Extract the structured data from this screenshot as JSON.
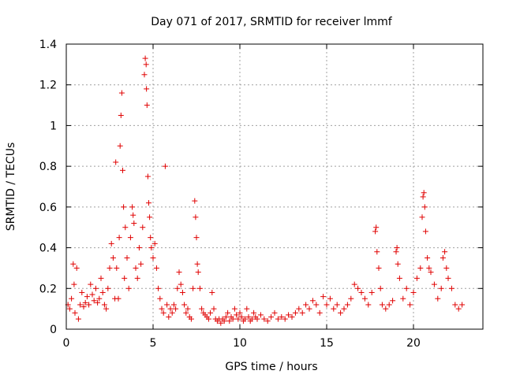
{
  "chart_data": {
    "type": "scatter",
    "title": "Day 071 of 2017, SRMTID for receiver lmmf",
    "xlabel": "GPS time / hours",
    "ylabel": "SRMTID / TECUs",
    "xlim": [
      0,
      24
    ],
    "ylim": [
      0,
      1.4
    ],
    "xticks": [
      0,
      5,
      10,
      15,
      20
    ],
    "xtick_labels": [
      "0",
      "5",
      "10",
      "15",
      "20"
    ],
    "yticks": [
      0,
      0.2,
      0.4,
      0.6,
      0.8,
      1.0,
      1.2,
      1.4
    ],
    "ytick_labels": [
      "0",
      "0.2",
      "0.4",
      "0.6",
      "0.8",
      "1",
      "1.2",
      "1.4"
    ],
    "grid": true,
    "marker": "+",
    "color": "#e00000",
    "series": [
      {
        "name": "SRMTID",
        "points": [
          [
            0.1,
            0.12
          ],
          [
            0.2,
            0.1
          ],
          [
            0.3,
            0.15
          ],
          [
            0.4,
            0.32
          ],
          [
            0.45,
            0.22
          ],
          [
            0.5,
            0.08
          ],
          [
            0.6,
            0.3
          ],
          [
            0.7,
            0.05
          ],
          [
            0.8,
            0.12
          ],
          [
            0.9,
            0.18
          ],
          [
            1.0,
            0.11
          ],
          [
            1.1,
            0.13
          ],
          [
            1.2,
            0.16
          ],
          [
            1.3,
            0.12
          ],
          [
            1.4,
            0.22
          ],
          [
            1.5,
            0.17
          ],
          [
            1.6,
            0.14
          ],
          [
            1.7,
            0.2
          ],
          [
            1.8,
            0.13
          ],
          [
            1.9,
            0.15
          ],
          [
            2.0,
            0.25
          ],
          [
            2.1,
            0.18
          ],
          [
            2.2,
            0.12
          ],
          [
            2.3,
            0.1
          ],
          [
            2.4,
            0.2
          ],
          [
            2.5,
            0.3
          ],
          [
            2.6,
            0.42
          ],
          [
            2.7,
            0.35
          ],
          [
            2.8,
            0.15
          ],
          [
            2.85,
            0.82
          ],
          [
            2.9,
            0.3
          ],
          [
            3.0,
            0.15
          ],
          [
            3.05,
            0.45
          ],
          [
            3.1,
            0.9
          ],
          [
            3.15,
            1.05
          ],
          [
            3.2,
            1.16
          ],
          [
            3.25,
            0.78
          ],
          [
            3.3,
            0.6
          ],
          [
            3.35,
            0.25
          ],
          [
            3.4,
            0.5
          ],
          [
            3.5,
            0.35
          ],
          [
            3.6,
            0.2
          ],
          [
            3.7,
            0.45
          ],
          [
            3.8,
            0.6
          ],
          [
            3.85,
            0.56
          ],
          [
            3.9,
            0.52
          ],
          [
            4.0,
            0.3
          ],
          [
            4.1,
            0.25
          ],
          [
            4.2,
            0.4
          ],
          [
            4.3,
            0.32
          ],
          [
            4.4,
            0.5
          ],
          [
            4.5,
            1.25
          ],
          [
            4.55,
            1.33
          ],
          [
            4.6,
            1.3
          ],
          [
            4.62,
            1.18
          ],
          [
            4.65,
            1.1
          ],
          [
            4.7,
            0.75
          ],
          [
            4.75,
            0.62
          ],
          [
            4.8,
            0.55
          ],
          [
            4.85,
            0.45
          ],
          [
            4.9,
            0.4
          ],
          [
            5.0,
            0.35
          ],
          [
            5.1,
            0.42
          ],
          [
            5.2,
            0.3
          ],
          [
            5.3,
            0.2
          ],
          [
            5.4,
            0.15
          ],
          [
            5.5,
            0.1
          ],
          [
            5.6,
            0.08
          ],
          [
            5.7,
            0.8
          ],
          [
            5.8,
            0.12
          ],
          [
            5.9,
            0.06
          ],
          [
            6.0,
            0.1
          ],
          [
            6.1,
            0.08
          ],
          [
            6.2,
            0.12
          ],
          [
            6.3,
            0.1
          ],
          [
            6.4,
            0.2
          ],
          [
            6.5,
            0.28
          ],
          [
            6.6,
            0.22
          ],
          [
            6.7,
            0.18
          ],
          [
            6.8,
            0.12
          ],
          [
            6.9,
            0.08
          ],
          [
            7.0,
            0.1
          ],
          [
            7.1,
            0.06
          ],
          [
            7.2,
            0.05
          ],
          [
            7.3,
            0.2
          ],
          [
            7.4,
            0.63
          ],
          [
            7.45,
            0.55
          ],
          [
            7.5,
            0.45
          ],
          [
            7.55,
            0.32
          ],
          [
            7.6,
            0.28
          ],
          [
            7.7,
            0.2
          ],
          [
            7.8,
            0.1
          ],
          [
            7.9,
            0.08
          ],
          [
            8.0,
            0.07
          ],
          [
            8.1,
            0.06
          ],
          [
            8.2,
            0.05
          ],
          [
            8.3,
            0.08
          ],
          [
            8.4,
            0.18
          ],
          [
            8.5,
            0.1
          ],
          [
            8.6,
            0.05
          ],
          [
            8.7,
            0.04
          ],
          [
            8.8,
            0.05
          ],
          [
            8.9,
            0.03
          ],
          [
            9.0,
            0.05
          ],
          [
            9.1,
            0.04
          ],
          [
            9.2,
            0.06
          ],
          [
            9.3,
            0.08
          ],
          [
            9.4,
            0.04
          ],
          [
            9.5,
            0.06
          ],
          [
            9.6,
            0.05
          ],
          [
            9.7,
            0.1
          ],
          [
            9.8,
            0.07
          ],
          [
            9.9,
            0.05
          ],
          [
            10.0,
            0.08
          ],
          [
            10.1,
            0.06
          ],
          [
            10.2,
            0.04
          ],
          [
            10.3,
            0.05
          ],
          [
            10.4,
            0.1
          ],
          [
            10.5,
            0.06
          ],
          [
            10.6,
            0.04
          ],
          [
            10.7,
            0.05
          ],
          [
            10.8,
            0.08
          ],
          [
            10.9,
            0.06
          ],
          [
            11.0,
            0.05
          ],
          [
            11.2,
            0.07
          ],
          [
            11.4,
            0.05
          ],
          [
            11.6,
            0.04
          ],
          [
            11.8,
            0.06
          ],
          [
            12.0,
            0.08
          ],
          [
            12.2,
            0.05
          ],
          [
            12.4,
            0.06
          ],
          [
            12.6,
            0.05
          ],
          [
            12.8,
            0.07
          ],
          [
            13.0,
            0.06
          ],
          [
            13.2,
            0.08
          ],
          [
            13.4,
            0.1
          ],
          [
            13.6,
            0.08
          ],
          [
            13.8,
            0.12
          ],
          [
            14.0,
            0.1
          ],
          [
            14.2,
            0.14
          ],
          [
            14.4,
            0.12
          ],
          [
            14.6,
            0.08
          ],
          [
            14.8,
            0.16
          ],
          [
            15.0,
            0.12
          ],
          [
            15.2,
            0.15
          ],
          [
            15.4,
            0.1
          ],
          [
            15.6,
            0.12
          ],
          [
            15.8,
            0.08
          ],
          [
            16.0,
            0.1
          ],
          [
            16.2,
            0.12
          ],
          [
            16.4,
            0.15
          ],
          [
            16.6,
            0.22
          ],
          [
            16.8,
            0.2
          ],
          [
            17.0,
            0.18
          ],
          [
            17.2,
            0.15
          ],
          [
            17.4,
            0.12
          ],
          [
            17.6,
            0.18
          ],
          [
            17.8,
            0.48
          ],
          [
            17.85,
            0.5
          ],
          [
            17.9,
            0.38
          ],
          [
            18.0,
            0.3
          ],
          [
            18.1,
            0.2
          ],
          [
            18.2,
            0.12
          ],
          [
            18.4,
            0.1
          ],
          [
            18.6,
            0.12
          ],
          [
            18.8,
            0.14
          ],
          [
            19.0,
            0.38
          ],
          [
            19.05,
            0.4
          ],
          [
            19.1,
            0.32
          ],
          [
            19.2,
            0.25
          ],
          [
            19.4,
            0.15
          ],
          [
            19.6,
            0.2
          ],
          [
            19.8,
            0.12
          ],
          [
            20.0,
            0.18
          ],
          [
            20.2,
            0.25
          ],
          [
            20.4,
            0.3
          ],
          [
            20.5,
            0.55
          ],
          [
            20.55,
            0.65
          ],
          [
            20.6,
            0.67
          ],
          [
            20.65,
            0.6
          ],
          [
            20.7,
            0.48
          ],
          [
            20.8,
            0.35
          ],
          [
            20.9,
            0.3
          ],
          [
            21.0,
            0.28
          ],
          [
            21.2,
            0.22
          ],
          [
            21.4,
            0.15
          ],
          [
            21.6,
            0.2
          ],
          [
            21.7,
            0.35
          ],
          [
            21.8,
            0.38
          ],
          [
            21.9,
            0.3
          ],
          [
            22.0,
            0.25
          ],
          [
            22.2,
            0.2
          ],
          [
            22.4,
            0.12
          ],
          [
            22.6,
            0.1
          ],
          [
            22.8,
            0.12
          ]
        ]
      }
    ]
  }
}
